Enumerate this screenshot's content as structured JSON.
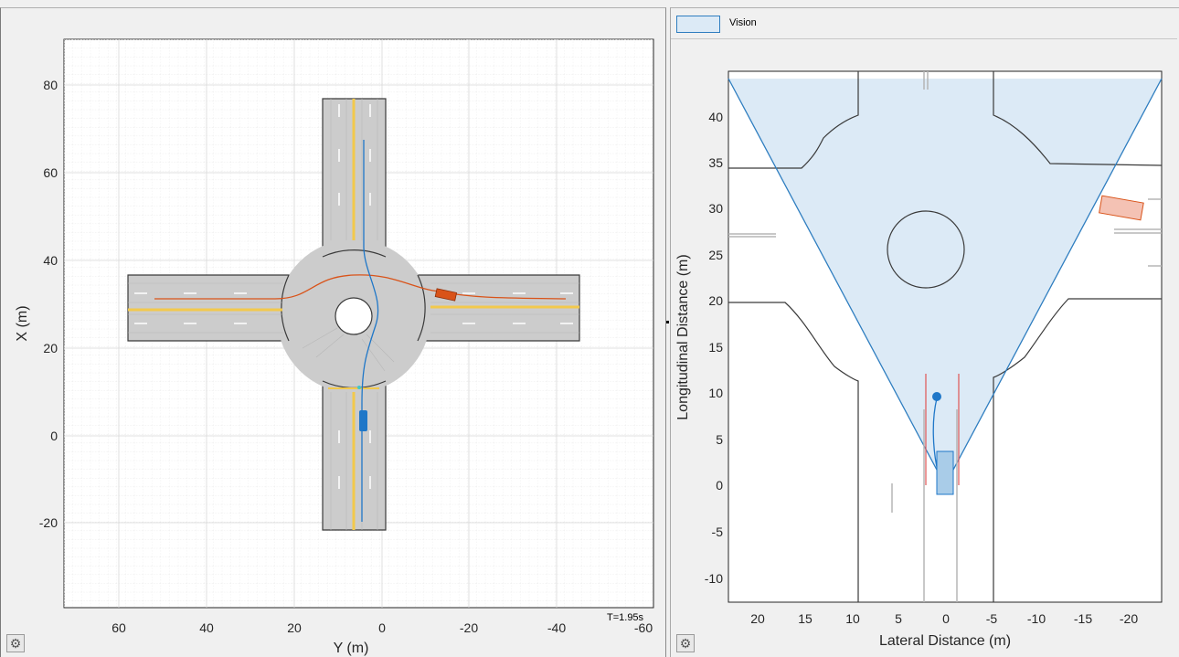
{
  "left_plot": {
    "xlabel": "Y (m)",
    "ylabel": "X (m)",
    "x_ticks": [
      "60",
      "40",
      "20",
      "0",
      "-20",
      "-40",
      "-60"
    ],
    "y_ticks": [
      "80",
      "60",
      "40",
      "20",
      "0",
      "-20"
    ],
    "time_label": "T=1.95s",
    "road_color": "#cccccc",
    "lane_yellow": "#f2c94c",
    "ego_color": "#1f77c8",
    "target_color": "#d95319"
  },
  "right_plot": {
    "xlabel": "Lateral Distance (m)",
    "ylabel": "Longitudinal Distance (m)",
    "x_ticks": [
      "20",
      "15",
      "10",
      "5",
      "0",
      "-5",
      "-10",
      "-15",
      "-20"
    ],
    "y_ticks": [
      "40",
      "35",
      "30",
      "25",
      "20",
      "15",
      "10",
      "5",
      "0",
      "-5",
      "-10"
    ],
    "legend_label": "Vision",
    "coverage_fill": "#dceaf6",
    "coverage_edge": "#2f7ec0",
    "lane_red": "#e06060"
  },
  "icons": {
    "left_settings": "gear-icon",
    "right_settings": "gear-icon"
  }
}
